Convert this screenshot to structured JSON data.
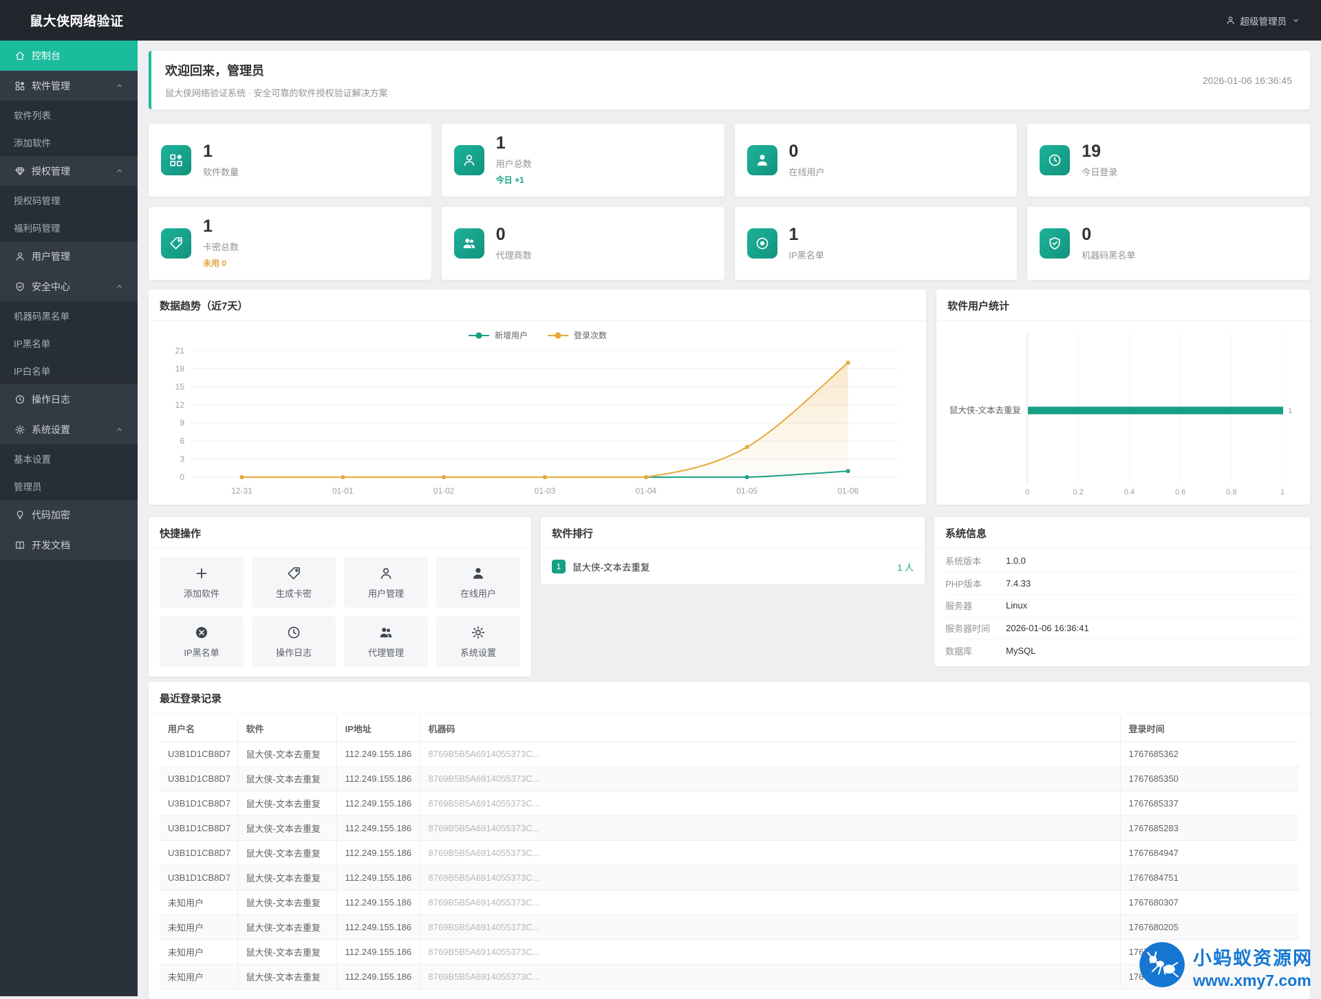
{
  "topbar": {
    "title": "鼠大侠网络验证",
    "user": "超级管理员"
  },
  "sidebar": {
    "items": [
      {
        "id": "console",
        "label": "控制台",
        "icon": "home",
        "type": "top",
        "active": true
      },
      {
        "id": "software-group",
        "label": "软件管理",
        "icon": "apps",
        "type": "group"
      },
      {
        "id": "software-list",
        "label": "软件列表",
        "type": "sub"
      },
      {
        "id": "software-add",
        "label": "添加软件",
        "type": "sub"
      },
      {
        "id": "license-group",
        "label": "授权管理",
        "icon": "gem",
        "type": "group"
      },
      {
        "id": "license-codes",
        "label": "授权码管理",
        "type": "sub"
      },
      {
        "id": "welfare-codes",
        "label": "福利码管理",
        "type": "sub"
      },
      {
        "id": "user-manage",
        "label": "用户管理",
        "icon": "user",
        "type": "top"
      },
      {
        "id": "security-group",
        "label": "安全中心",
        "icon": "shield",
        "type": "group"
      },
      {
        "id": "machine-blacklist",
        "label": "机器码黑名单",
        "type": "sub"
      },
      {
        "id": "ip-blacklist",
        "label": "IP黑名单",
        "type": "sub"
      },
      {
        "id": "ip-whitelist",
        "label": "IP白名单",
        "type": "sub"
      },
      {
        "id": "op-logs",
        "label": "操作日志",
        "icon": "clock",
        "type": "top"
      },
      {
        "id": "settings-group",
        "label": "系统设置",
        "icon": "gear",
        "type": "group"
      },
      {
        "id": "basic-settings",
        "label": "基本设置",
        "type": "sub"
      },
      {
        "id": "admin-manage",
        "label": "管理员",
        "type": "sub"
      },
      {
        "id": "code-encrypt",
        "label": "代码加密",
        "icon": "bulb",
        "type": "top"
      },
      {
        "id": "dev-docs",
        "label": "开发文档",
        "icon": "book",
        "type": "top"
      }
    ]
  },
  "welcome": {
    "title": "欢迎回来，管理员",
    "subtitle": "鼠大侠网络验证系统 · 安全可靠的软件授权验证解决方案",
    "datetime": "2026-01-06 16:36:45"
  },
  "stats": [
    {
      "id": "software-count",
      "icon": "apps",
      "value": "1",
      "label": "软件数量"
    },
    {
      "id": "user-total",
      "icon": "user",
      "value": "1",
      "label": "用户总数",
      "extra": "今日 +1",
      "extra_color": "teal"
    },
    {
      "id": "online-users",
      "icon": "person",
      "value": "0",
      "label": "在线用户"
    },
    {
      "id": "today-logins",
      "icon": "clock",
      "value": "19",
      "label": "今日登录"
    },
    {
      "id": "card-total",
      "icon": "tag",
      "value": "1",
      "label": "卡密总数",
      "extra": "未用 0",
      "extra_color": "orange"
    },
    {
      "id": "agent-count",
      "icon": "people",
      "value": "0",
      "label": "代理商数"
    },
    {
      "id": "ip-blacklist",
      "icon": "dot-circle",
      "value": "1",
      "label": "IP黑名单"
    },
    {
      "id": "machine-blacklist",
      "icon": "shield",
      "value": "0",
      "label": "机器码黑名单"
    }
  ],
  "chart_data": [
    {
      "type": "line",
      "title": "数据趋势（近7天）",
      "categories": [
        "12-31",
        "01-01",
        "01-02",
        "01-03",
        "01-04",
        "01-05",
        "01-06"
      ],
      "series": [
        {
          "name": "新增用户",
          "color": "#16a085",
          "values": [
            0,
            0,
            0,
            0,
            0,
            0,
            1
          ]
        },
        {
          "name": "登录次数",
          "color": "#e8a838",
          "values": [
            0,
            0,
            0,
            0,
            0,
            5,
            19
          ]
        }
      ],
      "ylim": [
        0,
        21
      ],
      "yticks": [
        0,
        3,
        6,
        9,
        12,
        15,
        18,
        21
      ],
      "grid": true,
      "legend_position": "top",
      "xlabel": "",
      "ylabel": ""
    },
    {
      "type": "bar",
      "orientation": "horizontal",
      "title": "软件用户统计",
      "categories": [
        "鼠大侠-文本去重复"
      ],
      "values": [
        1
      ],
      "value_labels": [
        "1"
      ],
      "color": "#16a085",
      "xlim": [
        0,
        1
      ],
      "xticks": [
        0,
        0.2,
        0.4,
        0.6,
        0.8,
        1
      ]
    }
  ],
  "quick_actions": {
    "title": "快捷操作",
    "items": [
      {
        "id": "add-software",
        "icon": "plus",
        "label": "添加软件"
      },
      {
        "id": "gen-card",
        "icon": "tag",
        "label": "生成卡密"
      },
      {
        "id": "user-manage",
        "icon": "user",
        "label": "用户管理"
      },
      {
        "id": "online-users",
        "icon": "person",
        "label": "在线用户"
      },
      {
        "id": "ip-blacklist",
        "icon": "x-circle",
        "label": "IP黑名单"
      },
      {
        "id": "op-logs",
        "icon": "clock",
        "label": "操作日志"
      },
      {
        "id": "agent-manage",
        "icon": "people",
        "label": "代理管理"
      },
      {
        "id": "system-settings",
        "icon": "gear",
        "label": "系统设置"
      }
    ]
  },
  "ranking": {
    "title": "软件排行",
    "items": [
      {
        "rank": "1",
        "name": "鼠大侠-文本去重复",
        "count": "1 人"
      }
    ]
  },
  "system_info": {
    "title": "系统信息",
    "rows": [
      {
        "label": "系统版本",
        "value": "1.0.0"
      },
      {
        "label": "PHP版本",
        "value": "7.4.33"
      },
      {
        "label": "服务器",
        "value": "Linux"
      },
      {
        "label": "服务器时间",
        "value": "2026-01-06 16:36:41"
      },
      {
        "label": "数据库",
        "value": "MySQL"
      }
    ]
  },
  "login_records": {
    "title": "最近登录记录",
    "columns": [
      "用户名",
      "软件",
      "IP地址",
      "机器码",
      "登录时间"
    ],
    "rows": [
      [
        "U3B1D1CB8D7",
        "鼠大侠-文本去重复",
        "112.249.155.186",
        "8769B5B5A6914055373C...",
        "1767685362"
      ],
      [
        "U3B1D1CB8D7",
        "鼠大侠-文本去重复",
        "112.249.155.186",
        "8769B5B5A6914055373C...",
        "1767685350"
      ],
      [
        "U3B1D1CB8D7",
        "鼠大侠-文本去重复",
        "112.249.155.186",
        "8769B5B5A6914055373C...",
        "1767685337"
      ],
      [
        "U3B1D1CB8D7",
        "鼠大侠-文本去重复",
        "112.249.155.186",
        "8769B5B5A6914055373C...",
        "1767685283"
      ],
      [
        "U3B1D1CB8D7",
        "鼠大侠-文本去重复",
        "112.249.155.186",
        "8769B5B5A6914055373C...",
        "1767684947"
      ],
      [
        "U3B1D1CB8D7",
        "鼠大侠-文本去重复",
        "112.249.155.186",
        "8769B5B5A6914055373C...",
        "1767684751"
      ],
      [
        "未知用户",
        "鼠大侠-文本去重复",
        "112.249.155.186",
        "8769B5B5A6914055373C...",
        "1767680307"
      ],
      [
        "未知用户",
        "鼠大侠-文本去重复",
        "112.249.155.186",
        "8769B5B5A6914055373C...",
        "1767680205"
      ],
      [
        "未知用户",
        "鼠大侠-文本去重复",
        "112.249.155.186",
        "8769B5B5A6914055373C...",
        "1767679921"
      ],
      [
        "未知用户",
        "鼠大侠-文本去重复",
        "112.249.155.186",
        "8769B5B5A6914055373C...",
        "1767679468"
      ]
    ]
  },
  "watermark": {
    "line1": "小蚂蚁资源网",
    "line2": "www.xmy7.com",
    "color": "#1677d2"
  },
  "colors": {
    "accent": "#1abc9c",
    "icon_tile": "#16a085",
    "orange": "#e6a23c",
    "line_teal": "#16a085",
    "line_orange": "#e8a838",
    "topbar_bg": "#22262d",
    "sidebar_bg": "#2b313a"
  }
}
